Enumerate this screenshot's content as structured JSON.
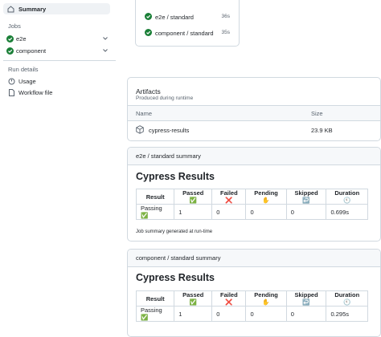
{
  "sidebar": {
    "summary": "Summary",
    "jobs_heading": "Jobs",
    "jobs": [
      "e2e",
      "component"
    ],
    "run_details_heading": "Run details",
    "run_details": [
      "Usage",
      "Workflow file"
    ]
  },
  "job_graph": [
    {
      "name": "e2e / standard",
      "duration": "36s"
    },
    {
      "name": "component / standard",
      "duration": "35s"
    }
  ],
  "artifacts": {
    "title": "Artifacts",
    "subtitle": "Produced during runtime",
    "columns": [
      "Name",
      "Size"
    ],
    "rows": [
      {
        "name": "cypress-results",
        "size": "23.9 KB"
      }
    ]
  },
  "summaries": [
    {
      "heading": "e2e / standard summary",
      "title": "Cypress Results",
      "table": {
        "header": [
          "Result",
          "Passed ✅",
          "Failed ❌",
          "Pending ✋",
          "Skipped ↩️",
          "Duration 🕙"
        ],
        "rows": [
          [
            "Passing ✅",
            "1",
            "0",
            "0",
            "0",
            "0.699s"
          ]
        ]
      },
      "footer": "Job summary generated at run-time"
    },
    {
      "heading": "component / standard summary",
      "title": "Cypress Results",
      "table": {
        "header": [
          "Result",
          "Passed ✅",
          "Failed ❌",
          "Pending ✋",
          "Skipped ↩️",
          "Duration 🕙"
        ],
        "rows": [
          [
            "Passing ✅",
            "1",
            "0",
            "0",
            "0",
            "0.295s"
          ]
        ]
      }
    }
  ]
}
